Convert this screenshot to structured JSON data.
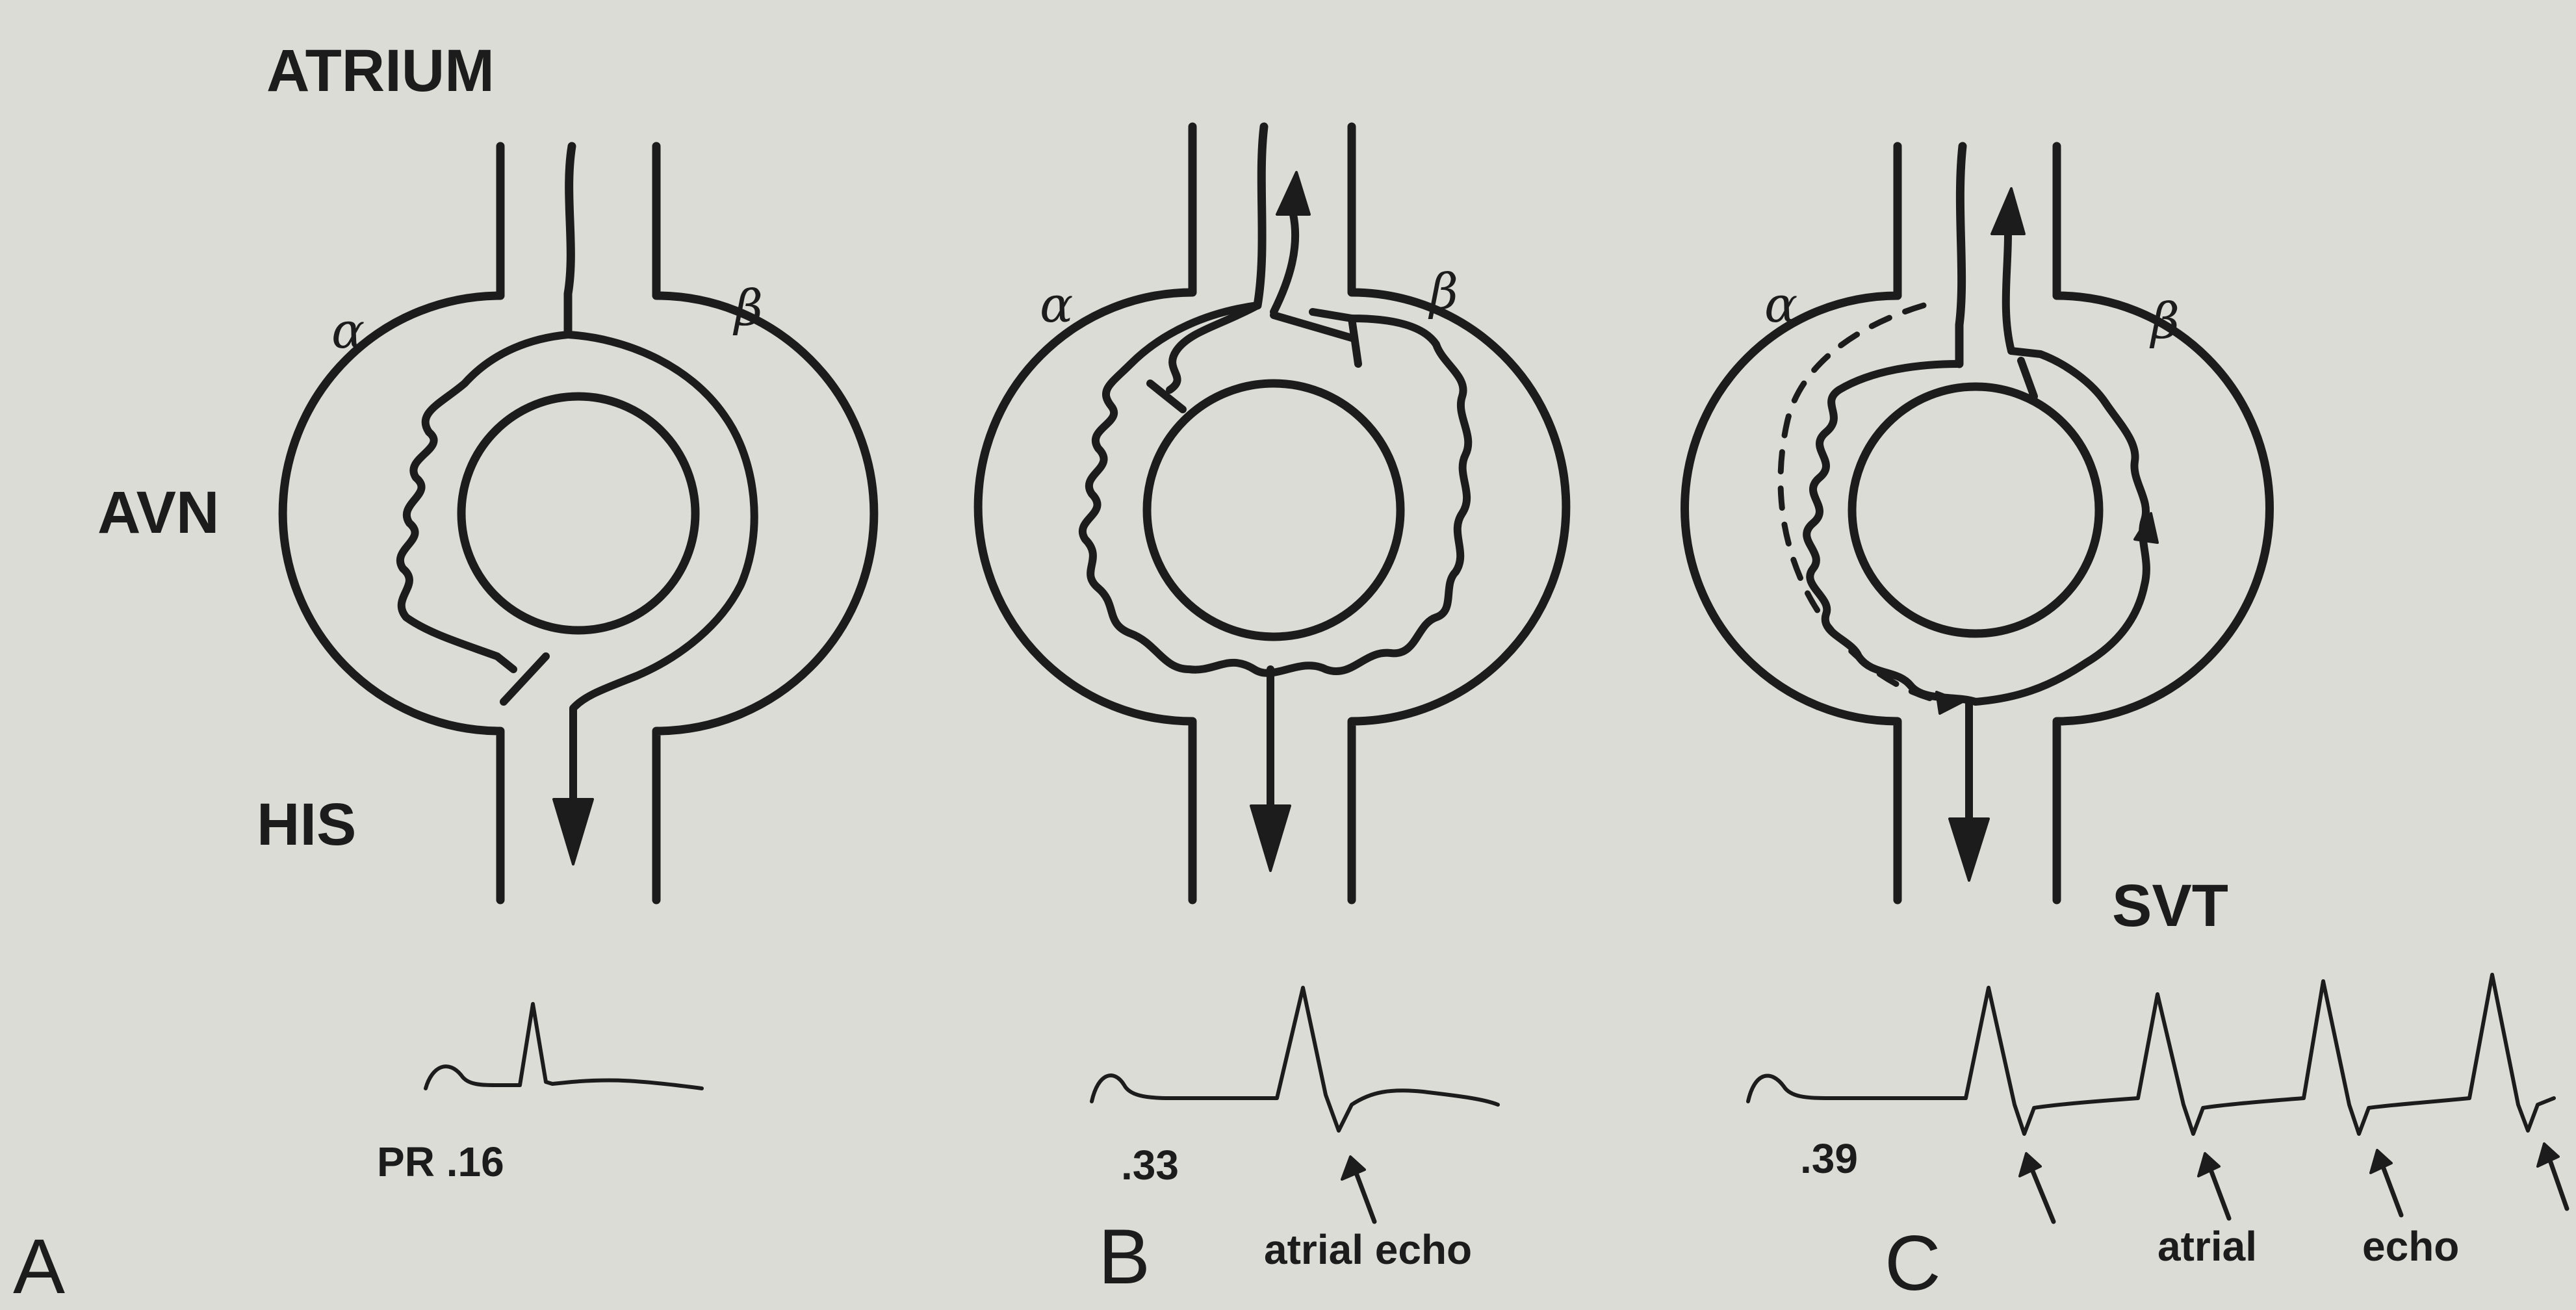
{
  "labels": {
    "atrium": "ATRIUM",
    "avn": "AVN",
    "his": "HIS",
    "svt": "SVT"
  },
  "pathways": {
    "alpha": "α",
    "beta": "β"
  },
  "panels": [
    {
      "letter": "A",
      "interval": "PR .16"
    },
    {
      "letter": "B",
      "interval": ".33",
      "annotation": "atrial echo"
    },
    {
      "letter": "C",
      "interval": ".39",
      "annotation_word1": "atrial",
      "annotation_word2": "echo"
    }
  ]
}
